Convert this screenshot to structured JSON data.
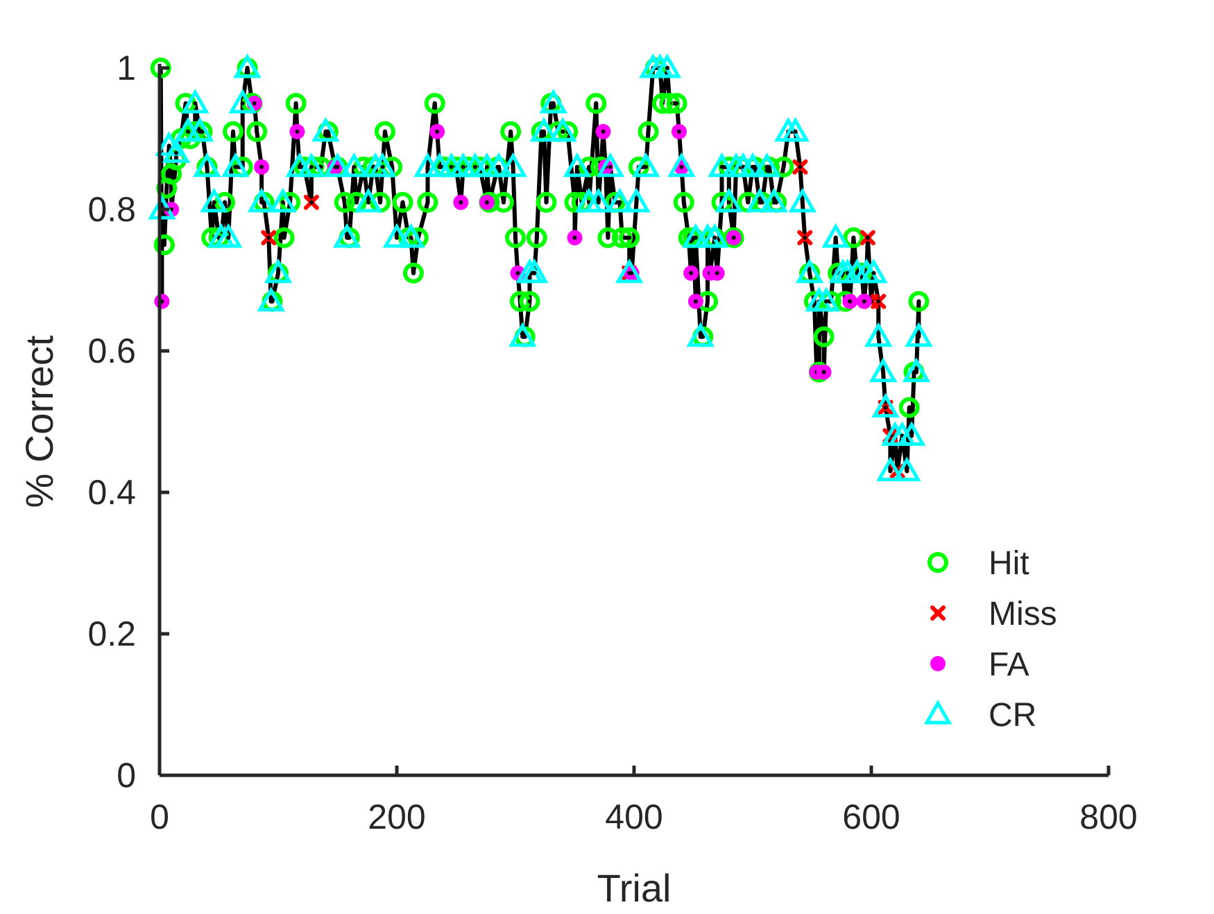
{
  "chart_data": {
    "type": "line",
    "xlabel": "Trial",
    "ylabel": "% Correct",
    "xlim": [
      0,
      800
    ],
    "ylim": [
      0,
      1
    ],
    "xticks": [
      0,
      200,
      400,
      600,
      800
    ],
    "yticks": [
      0,
      0.2,
      0.4,
      0.6,
      0.8,
      1
    ],
    "ytick_labels": [
      "0",
      "0.2",
      "0.4",
      "0.6",
      "0.8",
      "1"
    ],
    "grid": false,
    "legend_position": "bottom-right",
    "line_color": "#000000",
    "colors": {
      "Hit": "#00ff00",
      "Miss": "#ff0000",
      "FA": "#ff00ff",
      "CR": "#00ffff"
    },
    "series": [
      {
        "name": "Hit",
        "marker": "circle-open",
        "points": [
          [
            1,
            1
          ],
          [
            4,
            0.75
          ],
          [
            6,
            0.83
          ],
          [
            10,
            0.85
          ],
          [
            14,
            0.87
          ],
          [
            18,
            0.9
          ],
          [
            22,
            0.95
          ],
          [
            26,
            0.9
          ],
          [
            30,
            0.91
          ],
          [
            36,
            0.91
          ],
          [
            40,
            0.86
          ],
          [
            44,
            0.76
          ],
          [
            50,
            0.76
          ],
          [
            55,
            0.81
          ],
          [
            62,
            0.91
          ],
          [
            70,
            0.86
          ],
          [
            74,
            1
          ],
          [
            78,
            0.95
          ],
          [
            82,
            0.91
          ],
          [
            88,
            0.81
          ],
          [
            95,
            0.67
          ],
          [
            100,
            0.71
          ],
          [
            105,
            0.76
          ],
          [
            110,
            0.81
          ],
          [
            115,
            0.95
          ],
          [
            122,
            0.86
          ],
          [
            130,
            0.86
          ],
          [
            136,
            0.86
          ],
          [
            142,
            0.91
          ],
          [
            150,
            0.86
          ],
          [
            156,
            0.81
          ],
          [
            160,
            0.76
          ],
          [
            166,
            0.81
          ],
          [
            172,
            0.86
          ],
          [
            180,
            0.86
          ],
          [
            186,
            0.81
          ],
          [
            190,
            0.91
          ],
          [
            196,
            0.86
          ],
          [
            205,
            0.81
          ],
          [
            210,
            0.76
          ],
          [
            214,
            0.71
          ],
          [
            218,
            0.76
          ],
          [
            226,
            0.81
          ],
          [
            232,
            0.95
          ],
          [
            240,
            0.86
          ],
          [
            250,
            0.86
          ],
          [
            260,
            0.86
          ],
          [
            270,
            0.86
          ],
          [
            278,
            0.81
          ],
          [
            285,
            0.86
          ],
          [
            290,
            0.81
          ],
          [
            296,
            0.91
          ],
          [
            300,
            0.76
          ],
          [
            304,
            0.67
          ],
          [
            308,
            0.62
          ],
          [
            312,
            0.67
          ],
          [
            318,
            0.76
          ],
          [
            322,
            0.91
          ],
          [
            326,
            0.81
          ],
          [
            330,
            0.95
          ],
          [
            336,
            0.91
          ],
          [
            344,
            0.91
          ],
          [
            350,
            0.81
          ],
          [
            356,
            0.81
          ],
          [
            362,
            0.86
          ],
          [
            368,
            0.95
          ],
          [
            372,
            0.86
          ],
          [
            378,
            0.76
          ],
          [
            384,
            0.81
          ],
          [
            390,
            0.76
          ],
          [
            396,
            0.76
          ],
          [
            404,
            0.86
          ],
          [
            412,
            0.91
          ],
          [
            418,
            1
          ],
          [
            424,
            0.95
          ],
          [
            430,
            0.95
          ],
          [
            436,
            0.95
          ],
          [
            442,
            0.81
          ],
          [
            446,
            0.76
          ],
          [
            450,
            0.76
          ],
          [
            458,
            0.62
          ],
          [
            462,
            0.67
          ],
          [
            468,
            0.76
          ],
          [
            474,
            0.81
          ],
          [
            480,
            0.86
          ],
          [
            484,
            0.76
          ],
          [
            490,
            0.86
          ],
          [
            496,
            0.81
          ],
          [
            502,
            0.86
          ],
          [
            508,
            0.81
          ],
          [
            514,
            0.86
          ],
          [
            520,
            0.81
          ],
          [
            526,
            0.86
          ],
          [
            548,
            0.71
          ],
          [
            552,
            0.67
          ],
          [
            556,
            0.57
          ],
          [
            560,
            0.62
          ],
          [
            566,
            0.67
          ],
          [
            572,
            0.71
          ],
          [
            578,
            0.67
          ],
          [
            585,
            0.76
          ],
          [
            592,
            0.71
          ],
          [
            632,
            0.52
          ],
          [
            636,
            0.57
          ],
          [
            640,
            0.67
          ]
        ]
      },
      {
        "name": "Miss",
        "marker": "x",
        "points": [
          [
            92,
            0.76
          ],
          [
            128,
            0.81
          ],
          [
            396,
            0.71
          ],
          [
            540,
            0.86
          ],
          [
            544,
            0.76
          ],
          [
            597,
            0.76
          ],
          [
            600,
            0.67
          ],
          [
            606,
            0.67
          ],
          [
            612,
            0.52
          ],
          [
            616,
            0.48
          ],
          [
            622,
            0.43
          ]
        ]
      },
      {
        "name": "FA",
        "marker": "circle-filled",
        "points": [
          [
            2,
            0.67
          ],
          [
            10,
            0.8
          ],
          [
            80,
            0.95
          ],
          [
            86,
            0.86
          ],
          [
            116,
            0.91
          ],
          [
            148,
            0.86
          ],
          [
            234,
            0.91
          ],
          [
            254,
            0.81
          ],
          [
            276,
            0.81
          ],
          [
            302,
            0.71
          ],
          [
            350,
            0.76
          ],
          [
            374,
            0.91
          ],
          [
            376,
            0.86
          ],
          [
            398,
            0.71
          ],
          [
            438,
            0.91
          ],
          [
            440,
            0.86
          ],
          [
            448,
            0.71
          ],
          [
            452,
            0.67
          ],
          [
            464,
            0.71
          ],
          [
            470,
            0.71
          ],
          [
            484,
            0.76
          ],
          [
            554,
            0.57
          ],
          [
            560,
            0.57
          ],
          [
            582,
            0.67
          ],
          [
            594,
            0.67
          ]
        ]
      },
      {
        "name": "CR",
        "marker": "triangle-open",
        "points": [
          [
            2,
            0.8
          ],
          [
            8,
            0.89
          ],
          [
            14,
            0.88
          ],
          [
            24,
            0.91
          ],
          [
            30,
            0.95
          ],
          [
            34,
            0.91
          ],
          [
            40,
            0.86
          ],
          [
            46,
            0.81
          ],
          [
            52,
            0.76
          ],
          [
            58,
            0.76
          ],
          [
            64,
            0.86
          ],
          [
            70,
            0.95
          ],
          [
            74,
            1
          ],
          [
            86,
            0.81
          ],
          [
            94,
            0.67
          ],
          [
            100,
            0.71
          ],
          [
            104,
            0.81
          ],
          [
            118,
            0.86
          ],
          [
            128,
            0.86
          ],
          [
            140,
            0.91
          ],
          [
            150,
            0.86
          ],
          [
            158,
            0.76
          ],
          [
            164,
            0.86
          ],
          [
            176,
            0.81
          ],
          [
            182,
            0.86
          ],
          [
            188,
            0.86
          ],
          [
            200,
            0.76
          ],
          [
            212,
            0.76
          ],
          [
            226,
            0.86
          ],
          [
            236,
            0.86
          ],
          [
            246,
            0.86
          ],
          [
            256,
            0.86
          ],
          [
            266,
            0.86
          ],
          [
            276,
            0.86
          ],
          [
            286,
            0.86
          ],
          [
            298,
            0.86
          ],
          [
            306,
            0.62
          ],
          [
            312,
            0.71
          ],
          [
            316,
            0.71
          ],
          [
            324,
            0.91
          ],
          [
            332,
            0.95
          ],
          [
            340,
            0.91
          ],
          [
            352,
            0.86
          ],
          [
            362,
            0.81
          ],
          [
            370,
            0.81
          ],
          [
            380,
            0.86
          ],
          [
            388,
            0.81
          ],
          [
            396,
            0.71
          ],
          [
            402,
            0.81
          ],
          [
            410,
            0.86
          ],
          [
            416,
            1
          ],
          [
            422,
            1
          ],
          [
            428,
            1
          ],
          [
            440,
            0.86
          ],
          [
            452,
            0.76
          ],
          [
            456,
            0.62
          ],
          [
            462,
            0.76
          ],
          [
            468,
            0.76
          ],
          [
            474,
            0.86
          ],
          [
            480,
            0.81
          ],
          [
            486,
            0.86
          ],
          [
            492,
            0.86
          ],
          [
            500,
            0.86
          ],
          [
            506,
            0.81
          ],
          [
            512,
            0.86
          ],
          [
            518,
            0.81
          ],
          [
            530,
            0.91
          ],
          [
            536,
            0.91
          ],
          [
            542,
            0.81
          ],
          [
            548,
            0.71
          ],
          [
            556,
            0.67
          ],
          [
            562,
            0.67
          ],
          [
            570,
            0.76
          ],
          [
            576,
            0.71
          ],
          [
            580,
            0.71
          ],
          [
            588,
            0.71
          ],
          [
            596,
            0.71
          ],
          [
            602,
            0.71
          ],
          [
            606,
            0.62
          ],
          [
            610,
            0.57
          ],
          [
            612,
            0.52
          ],
          [
            616,
            0.43
          ],
          [
            620,
            0.48
          ],
          [
            626,
            0.48
          ],
          [
            630,
            0.43
          ],
          [
            634,
            0.48
          ],
          [
            638,
            0.57
          ],
          [
            640,
            0.62
          ]
        ]
      }
    ]
  }
}
